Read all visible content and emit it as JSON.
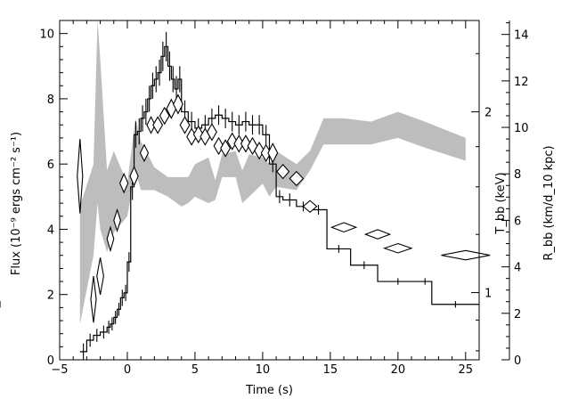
{
  "chart_data": {
    "type": "line",
    "xlabel": "Time (s)",
    "xlim": [
      -5,
      26
    ],
    "x_ticks": [
      -5,
      0,
      5,
      10,
      15,
      20,
      25
    ],
    "left_axis": {
      "label": "Flux (10⁻⁹ ergs cm⁻² s⁻¹)",
      "ylim": [
        0,
        10.4
      ],
      "ticks": [
        0,
        2,
        4,
        6,
        8,
        10
      ]
    },
    "temp_axis": {
      "label": "T_bb (keV)",
      "scale": "log",
      "tick_labels": [
        "1",
        "2"
      ],
      "ticks": [
        1,
        2
      ]
    },
    "radius_axis": {
      "label": "R_bb (km/d_10 kpc)",
      "ylim": [
        0,
        14.6
      ],
      "ticks": [
        0,
        2,
        4,
        6,
        8,
        10,
        12,
        14
      ]
    },
    "series": [
      {
        "role": "flux",
        "style": "histogram",
        "edges": [
          -3.5,
          -3.0,
          -2.5,
          -2.0,
          -1.5,
          -1.25,
          -1.0,
          -0.75,
          -0.5,
          -0.25,
          0.0,
          0.25,
          0.5,
          0.75,
          1.0,
          1.25,
          1.5,
          1.75,
          2.0,
          2.25,
          2.5,
          2.75,
          3.0,
          3.25,
          3.5,
          3.75,
          4.0,
          4.5,
          5.0,
          5.5,
          6.0,
          6.5,
          7.0,
          7.5,
          8.0,
          8.5,
          9.0,
          9.5,
          10.0,
          10.5,
          11.0,
          11.5,
          12.5,
          13.5,
          14.75,
          16.5,
          18.5,
          21.5,
          22.5,
          26.0
        ],
        "values": [
          0.25,
          0.6,
          0.75,
          0.85,
          1.0,
          1.1,
          1.3,
          1.55,
          1.9,
          2.05,
          3.0,
          5.3,
          6.9,
          7.0,
          7.4,
          7.6,
          8.0,
          8.4,
          8.6,
          8.8,
          9.3,
          9.6,
          9.0,
          8.6,
          8.3,
          8.6,
          7.6,
          7.3,
          7.1,
          7.2,
          7.4,
          7.5,
          7.4,
          7.3,
          7.2,
          7.3,
          7.2,
          7.2,
          6.9,
          6.0,
          5.0,
          4.9,
          4.7,
          4.6,
          3.4,
          2.9,
          2.4,
          2.4,
          1.7,
          1.7
        ],
        "errors": [
          0.25,
          0.2,
          0.2,
          0.2,
          0.2,
          0.2,
          0.2,
          0.2,
          0.25,
          0.25,
          0.3,
          0.4,
          0.4,
          0.4,
          0.4,
          0.4,
          0.4,
          0.4,
          0.4,
          0.4,
          0.45,
          0.45,
          0.45,
          0.4,
          0.4,
          0.4,
          0.35,
          0.3,
          0.3,
          0.3,
          0.3,
          0.3,
          0.3,
          0.3,
          0.3,
          0.3,
          0.3,
          0.3,
          0.3,
          0.25,
          0.2,
          0.2,
          0.15,
          0.15,
          0.12,
          0.12,
          0.1,
          0.1,
          0.1,
          0.1
        ]
      },
      {
        "role": "temperature",
        "style": "band",
        "x": [
          -3.5,
          -2.5,
          -2.2,
          -2.0,
          -1.5,
          -1.0,
          0.0,
          0.6,
          1.0,
          2.0,
          3.0,
          4.0,
          4.5,
          5.0,
          6.0,
          6.5,
          7.0,
          8.0,
          8.5,
          9.0,
          10.0,
          10.5,
          11.0,
          12.5,
          13.5,
          14.5,
          16.0,
          18.0,
          20.0,
          22.0,
          25.0
        ],
        "upper": [
          4.7,
          6.0,
          10.4,
          9.2,
          5.8,
          6.4,
          5.4,
          7.4,
          6.7,
          5.9,
          5.6,
          5.6,
          5.6,
          6.0,
          6.2,
          5.5,
          6.3,
          6.4,
          5.8,
          6.3,
          6.2,
          6.0,
          6.4,
          6.0,
          6.4,
          7.4,
          7.4,
          7.3,
          7.6,
          7.3,
          6.8
        ],
        "lower": [
          1.1,
          3.2,
          4.8,
          4.0,
          3.3,
          3.9,
          4.4,
          5.8,
          5.2,
          5.2,
          5.0,
          4.7,
          4.8,
          5.0,
          4.8,
          4.9,
          5.6,
          5.6,
          4.8,
          5.0,
          5.4,
          5.0,
          5.3,
          5.2,
          5.8,
          6.6,
          6.6,
          6.6,
          6.8,
          6.5,
          6.1
        ]
      },
      {
        "role": "radius",
        "style": "diamonds",
        "x": [
          -3.5,
          -2.5,
          -2.0,
          -1.25,
          -0.75,
          -0.25,
          0.5,
          1.25,
          1.75,
          2.25,
          2.75,
          3.25,
          3.75,
          4.25,
          4.75,
          5.25,
          5.75,
          6.25,
          6.75,
          7.25,
          7.75,
          8.25,
          8.75,
          9.25,
          9.75,
          10.25,
          10.75,
          11.5,
          12.5,
          13.5,
          16.0,
          18.5,
          20.0,
          25.0
        ],
        "y": [
          7.9,
          2.6,
          3.6,
          5.2,
          6.0,
          7.6,
          7.9,
          8.9,
          10.1,
          10.1,
          10.5,
          10.8,
          11.0,
          10.1,
          9.6,
          9.7,
          9.6,
          9.8,
          9.2,
          9.1,
          9.4,
          9.3,
          9.3,
          9.2,
          9.0,
          8.9,
          8.9,
          8.1,
          7.8,
          6.6,
          5.7,
          5.4,
          4.8,
          4.5
        ],
        "half_width": [
          0.2,
          0.2,
          0.25,
          0.25,
          0.25,
          0.3,
          0.3,
          0.3,
          0.3,
          0.35,
          0.35,
          0.35,
          0.35,
          0.35,
          0.35,
          0.35,
          0.35,
          0.35,
          0.35,
          0.35,
          0.35,
          0.35,
          0.35,
          0.35,
          0.35,
          0.35,
          0.35,
          0.45,
          0.5,
          0.5,
          0.9,
          0.9,
          1.0,
          1.8
        ],
        "half_height": [
          1.6,
          1.0,
          0.8,
          0.5,
          0.45,
          0.4,
          0.4,
          0.35,
          0.35,
          0.35,
          0.35,
          0.4,
          0.4,
          0.35,
          0.35,
          0.35,
          0.35,
          0.35,
          0.35,
          0.35,
          0.35,
          0.35,
          0.35,
          0.35,
          0.35,
          0.35,
          0.4,
          0.3,
          0.3,
          0.25,
          0.2,
          0.2,
          0.2,
          0.2
        ]
      }
    ]
  }
}
